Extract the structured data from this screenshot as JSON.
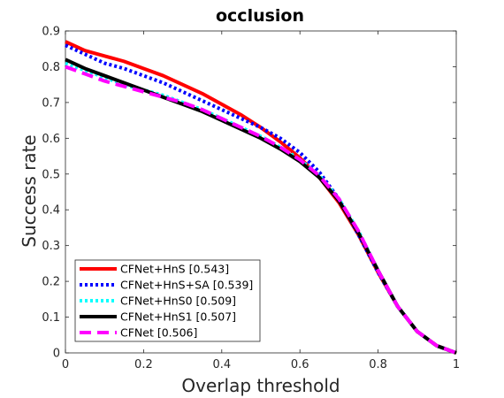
{
  "chart_data": {
    "type": "line",
    "title": "occlusion",
    "xlabel": "Overlap threshold",
    "ylabel": "Success rate",
    "xlim": [
      0,
      1
    ],
    "ylim": [
      0,
      0.9
    ],
    "xticks": [
      0,
      0.2,
      0.4,
      0.6,
      0.8,
      1
    ],
    "xtick_labels": [
      "0",
      "0.2",
      "0.4",
      "0.6",
      "0.8",
      "1"
    ],
    "yticks": [
      0,
      0.1,
      0.2,
      0.3,
      0.4,
      0.5,
      0.6,
      0.7,
      0.8,
      0.9
    ],
    "ytick_labels": [
      "0",
      "0.1",
      "0.2",
      "0.3",
      "0.4",
      "0.5",
      "0.6",
      "0.7",
      "0.8",
      "0.9"
    ],
    "grid": false,
    "legend_position": "bottom-left",
    "series": [
      {
        "name": "CFNet+HnS [0.543]",
        "color": "#ff0000",
        "style": "solid",
        "x": [
          0,
          0.05,
          0.1,
          0.15,
          0.2,
          0.25,
          0.3,
          0.35,
          0.4,
          0.45,
          0.5,
          0.55,
          0.6,
          0.65,
          0.7,
          0.75,
          0.8,
          0.85,
          0.9,
          0.95,
          1.0
        ],
        "y": [
          0.87,
          0.845,
          0.83,
          0.815,
          0.795,
          0.775,
          0.75,
          0.725,
          0.695,
          0.665,
          0.63,
          0.59,
          0.545,
          0.49,
          0.42,
          0.33,
          0.225,
          0.13,
          0.06,
          0.02,
          0.0
        ]
      },
      {
        "name": "CFNet+HnS+SA [0.539]",
        "color": "#0000ff",
        "style": "dotted",
        "x": [
          0,
          0.05,
          0.1,
          0.15,
          0.2,
          0.25,
          0.3,
          0.35,
          0.4,
          0.45,
          0.5,
          0.55,
          0.6,
          0.65,
          0.7,
          0.75,
          0.8,
          0.85,
          0.9,
          0.95,
          1.0
        ],
        "y": [
          0.86,
          0.835,
          0.81,
          0.795,
          0.775,
          0.755,
          0.73,
          0.705,
          0.68,
          0.655,
          0.63,
          0.6,
          0.56,
          0.505,
          0.43,
          0.33,
          0.225,
          0.13,
          0.06,
          0.02,
          0.0
        ]
      },
      {
        "name": "CFNet+HnS0 [0.509]",
        "color": "#00ffff",
        "style": "dotted",
        "x": [
          0,
          0.05,
          0.1,
          0.15,
          0.2,
          0.25,
          0.3,
          0.35,
          0.4,
          0.45,
          0.5,
          0.55,
          0.6,
          0.65,
          0.7,
          0.75,
          0.8,
          0.85,
          0.9,
          0.95,
          1.0
        ],
        "y": [
          0.81,
          0.79,
          0.77,
          0.75,
          0.735,
          0.72,
          0.7,
          0.68,
          0.655,
          0.63,
          0.605,
          0.575,
          0.54,
          0.495,
          0.43,
          0.34,
          0.23,
          0.13,
          0.06,
          0.02,
          0.0
        ]
      },
      {
        "name": "CFNet+HnS1 [0.507]",
        "color": "#000000",
        "style": "solid",
        "x": [
          0,
          0.05,
          0.1,
          0.15,
          0.2,
          0.25,
          0.3,
          0.35,
          0.4,
          0.45,
          0.5,
          0.55,
          0.6,
          0.65,
          0.7,
          0.75,
          0.8,
          0.85,
          0.9,
          0.95,
          1.0
        ],
        "y": [
          0.82,
          0.795,
          0.775,
          0.755,
          0.735,
          0.715,
          0.695,
          0.675,
          0.65,
          0.625,
          0.6,
          0.57,
          0.535,
          0.49,
          0.425,
          0.335,
          0.23,
          0.13,
          0.06,
          0.02,
          0.0
        ]
      },
      {
        "name": "CFNet [0.506]",
        "color": "#ff00ff",
        "style": "dashed",
        "x": [
          0,
          0.05,
          0.1,
          0.15,
          0.2,
          0.25,
          0.3,
          0.35,
          0.4,
          0.45,
          0.5,
          0.55,
          0.6,
          0.65,
          0.7,
          0.75,
          0.8,
          0.85,
          0.9,
          0.95,
          1.0
        ],
        "y": [
          0.8,
          0.78,
          0.76,
          0.745,
          0.73,
          0.715,
          0.7,
          0.68,
          0.655,
          0.63,
          0.605,
          0.575,
          0.54,
          0.495,
          0.43,
          0.34,
          0.23,
          0.13,
          0.06,
          0.02,
          0.0
        ]
      }
    ]
  }
}
